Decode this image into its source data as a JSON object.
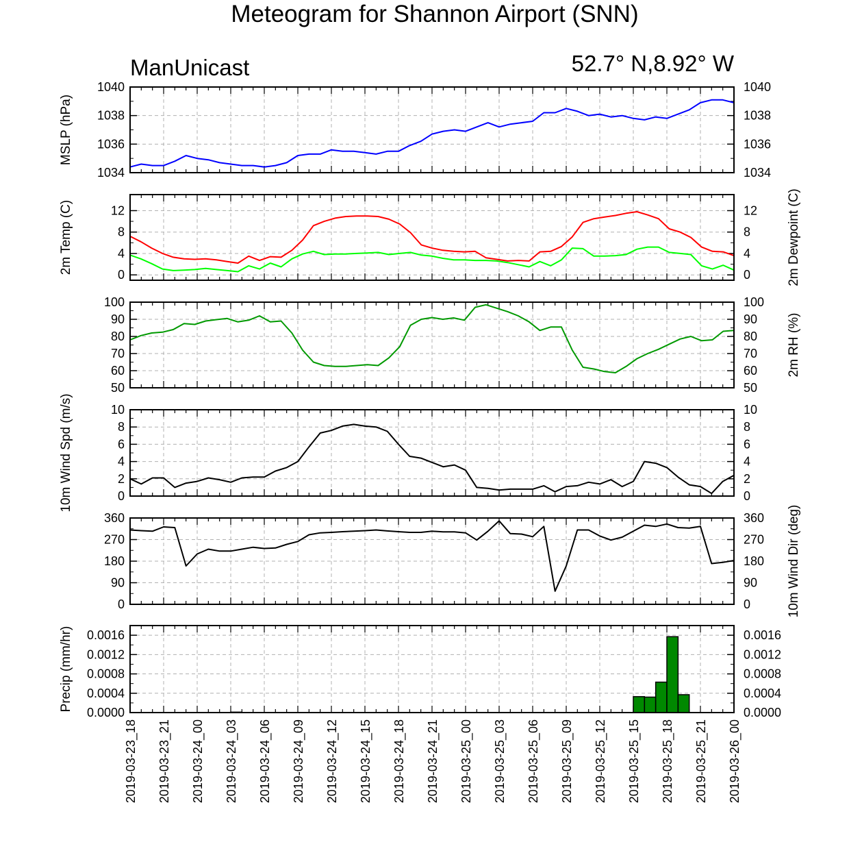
{
  "title": "Meteogram for Shannon Airport (SNN)",
  "model": "ManUnicast",
  "location": "52.7° N,8.92° W",
  "colors": {
    "mslp": "#0000ff",
    "temp": "#ff0000",
    "dewpoint": "#00ff00",
    "rh": "#009900",
    "wind_spd": "#000000",
    "wind_dir": "#000000",
    "precip_fill": "#008800",
    "grid": "#b0b0b0"
  },
  "x_axis": {
    "start_hour": 0,
    "end_hour": 54,
    "tick_labels": [
      "2019-03-23_18",
      "2019-03-23_21",
      "2019-03-24_00",
      "2019-03-24_03",
      "2019-03-24_06",
      "2019-03-24_09",
      "2019-03-24_12",
      "2019-03-24_15",
      "2019-03-24_18",
      "2019-03-24_21",
      "2019-03-25_00",
      "2019-03-25_03",
      "2019-03-25_06",
      "2019-03-25_09",
      "2019-03-25_12",
      "2019-03-25_15",
      "2019-03-25_18",
      "2019-03-25_21",
      "2019-03-26_00"
    ]
  },
  "chart_data": [
    {
      "type": "line",
      "ylabel_left": "MSLP (hPa)",
      "ylabel_right": "",
      "ylim": [
        1034,
        1040
      ],
      "yticks": [
        "1034",
        "1036",
        "1038",
        "1040"
      ],
      "series": [
        {
          "color_key": "mslp",
          "values": [
            1034.4,
            1034.6,
            1034.5,
            1034.5,
            1034.8,
            1035.2,
            1035.0,
            1034.9,
            1034.7,
            1034.6,
            1034.5,
            1034.5,
            1034.4,
            1034.5,
            1034.7,
            1035.2,
            1035.3,
            1035.3,
            1035.6,
            1035.5,
            1035.5,
            1035.4,
            1035.3,
            1035.5,
            1035.5,
            1035.9,
            1036.2,
            1036.7,
            1036.9,
            1037.0,
            1036.9,
            1037.2,
            1037.5,
            1037.2,
            1037.4,
            1037.5,
            1037.6,
            1038.2,
            1038.2,
            1038.5,
            1038.3,
            1038.0,
            1038.1,
            1037.9,
            1038.0,
            1037.8,
            1037.7,
            1037.9,
            1037.8,
            1038.1,
            1038.4,
            1038.9,
            1039.1,
            1039.1,
            1038.9
          ]
        }
      ]
    },
    {
      "type": "line",
      "ylabel_left": "2m Temp (C)",
      "ylabel_right": "2m Dewpoint (C)",
      "ylim": [
        -1,
        15
      ],
      "yticks": [
        "0",
        "4",
        "8",
        "12"
      ],
      "series": [
        {
          "color_key": "temp",
          "values": [
            7.2,
            6.2,
            5.0,
            4.0,
            3.3,
            3.0,
            2.9,
            3.0,
            2.8,
            2.5,
            2.2,
            3.5,
            2.7,
            3.4,
            3.3,
            4.6,
            6.5,
            9.2,
            10.0,
            10.6,
            10.9,
            11.0,
            11.0,
            10.9,
            10.4,
            9.5,
            7.9,
            5.6,
            5.0,
            4.6,
            4.4,
            4.3,
            4.4,
            3.2,
            2.9,
            2.6,
            2.7,
            2.6,
            4.3,
            4.4,
            5.3,
            7.1,
            9.8,
            10.5,
            10.8,
            11.1,
            11.5,
            11.8,
            11.2,
            10.5,
            8.6,
            8.0,
            7.0,
            5.2,
            4.4,
            4.3,
            3.6
          ]
        },
        {
          "color_key": "dewpoint",
          "values": [
            3.7,
            3.0,
            2.1,
            1.1,
            0.8,
            0.9,
            1.0,
            1.2,
            1.0,
            0.8,
            0.6,
            1.7,
            1.1,
            2.2,
            1.5,
            3.0,
            3.9,
            4.4,
            3.8,
            3.9,
            3.9,
            4.0,
            4.1,
            4.2,
            3.8,
            4.0,
            4.2,
            3.7,
            3.5,
            3.1,
            2.8,
            2.8,
            2.7,
            2.7,
            2.6,
            2.3,
            1.9,
            1.5,
            2.5,
            1.7,
            2.8,
            5.0,
            4.9,
            3.5,
            3.5,
            3.6,
            3.8,
            4.8,
            5.2,
            5.2,
            4.2,
            4.0,
            3.8,
            1.7,
            1.1,
            1.8,
            0.9
          ]
        }
      ]
    },
    {
      "type": "line",
      "ylabel_left": "",
      "ylabel_right": "2m RH (%)",
      "ylim": [
        50,
        100
      ],
      "yticks": [
        "50",
        "60",
        "70",
        "80",
        "90",
        "100"
      ],
      "series": [
        {
          "color_key": "rh",
          "values": [
            78,
            80.5,
            82,
            82.5,
            84,
            87.5,
            87,
            89,
            89.8,
            90.5,
            88.5,
            89.5,
            92,
            88.5,
            89,
            82,
            72,
            65,
            63,
            62.5,
            62.5,
            63,
            63.5,
            63,
            67.5,
            74,
            86.5,
            90,
            91,
            90,
            90.8,
            89.5,
            97,
            98.5,
            96.5,
            94.5,
            92,
            88.5,
            83.5,
            85.5,
            85.5,
            72,
            62,
            61,
            59.5,
            58.8,
            62.5,
            67,
            70,
            72.5,
            75.5,
            78.5,
            80,
            77.5,
            78,
            83,
            83.5
          ]
        }
      ]
    },
    {
      "type": "line",
      "ylabel_left": "10m Wind Spd (m/s)",
      "ylabel_right": "",
      "ylim": [
        0,
        10
      ],
      "yticks": [
        "0",
        "2",
        "4",
        "6",
        "8",
        "10"
      ],
      "series": [
        {
          "color_key": "wind_spd",
          "values": [
            2.0,
            1.4,
            2.1,
            2.1,
            1.0,
            1.5,
            1.7,
            2.1,
            1.9,
            1.6,
            2.1,
            2.2,
            2.2,
            2.9,
            3.3,
            4.0,
            5.7,
            7.3,
            7.6,
            8.1,
            8.3,
            8.1,
            8.0,
            7.5,
            6.0,
            4.6,
            4.4,
            3.9,
            3.4,
            3.6,
            3.0,
            1.0,
            0.9,
            0.7,
            0.8,
            0.8,
            0.8,
            1.2,
            0.5,
            1.1,
            1.2,
            1.6,
            1.4,
            1.9,
            1.1,
            1.7,
            4.0,
            3.8,
            3.3,
            2.2,
            1.3,
            1.1,
            0.3,
            1.7,
            2.4
          ]
        }
      ]
    },
    {
      "type": "line",
      "ylabel_left": "",
      "ylabel_right": "10m Wind Dir (deg)",
      "ylim": [
        0,
        360
      ],
      "yticks": [
        "0",
        "90",
        "180",
        "270",
        "360"
      ],
      "series": [
        {
          "color_key": "wind_dir",
          "values": [
            310,
            307,
            305,
            323,
            320,
            160,
            210,
            230,
            222,
            222,
            230,
            238,
            233,
            235,
            250,
            262,
            290,
            298,
            300,
            303,
            305,
            307,
            310,
            306,
            303,
            300,
            300,
            305,
            302,
            302,
            298,
            268,
            305,
            348,
            295,
            293,
            282,
            325,
            55,
            160,
            310,
            310,
            285,
            268,
            280,
            305,
            330,
            325,
            335,
            320,
            318,
            325,
            170,
            175,
            183
          ]
        }
      ]
    },
    {
      "type": "bar",
      "ylabel_left": "Precip (mm/hr)",
      "ylabel_right": "",
      "ylim": [
        0,
        0.0018
      ],
      "yticks": [
        "0.0000",
        "0.0004",
        "0.0008",
        "0.0012",
        "0.0016"
      ],
      "bars": [
        {
          "hour": 9,
          "value": 1e-05
        },
        {
          "hour": 45,
          "value": 0.00033
        },
        {
          "hour": 46,
          "value": 0.00032
        },
        {
          "hour": 47,
          "value": 0.00063
        },
        {
          "hour": 48,
          "value": 0.00157
        },
        {
          "hour": 49,
          "value": 0.00037
        }
      ]
    }
  ]
}
